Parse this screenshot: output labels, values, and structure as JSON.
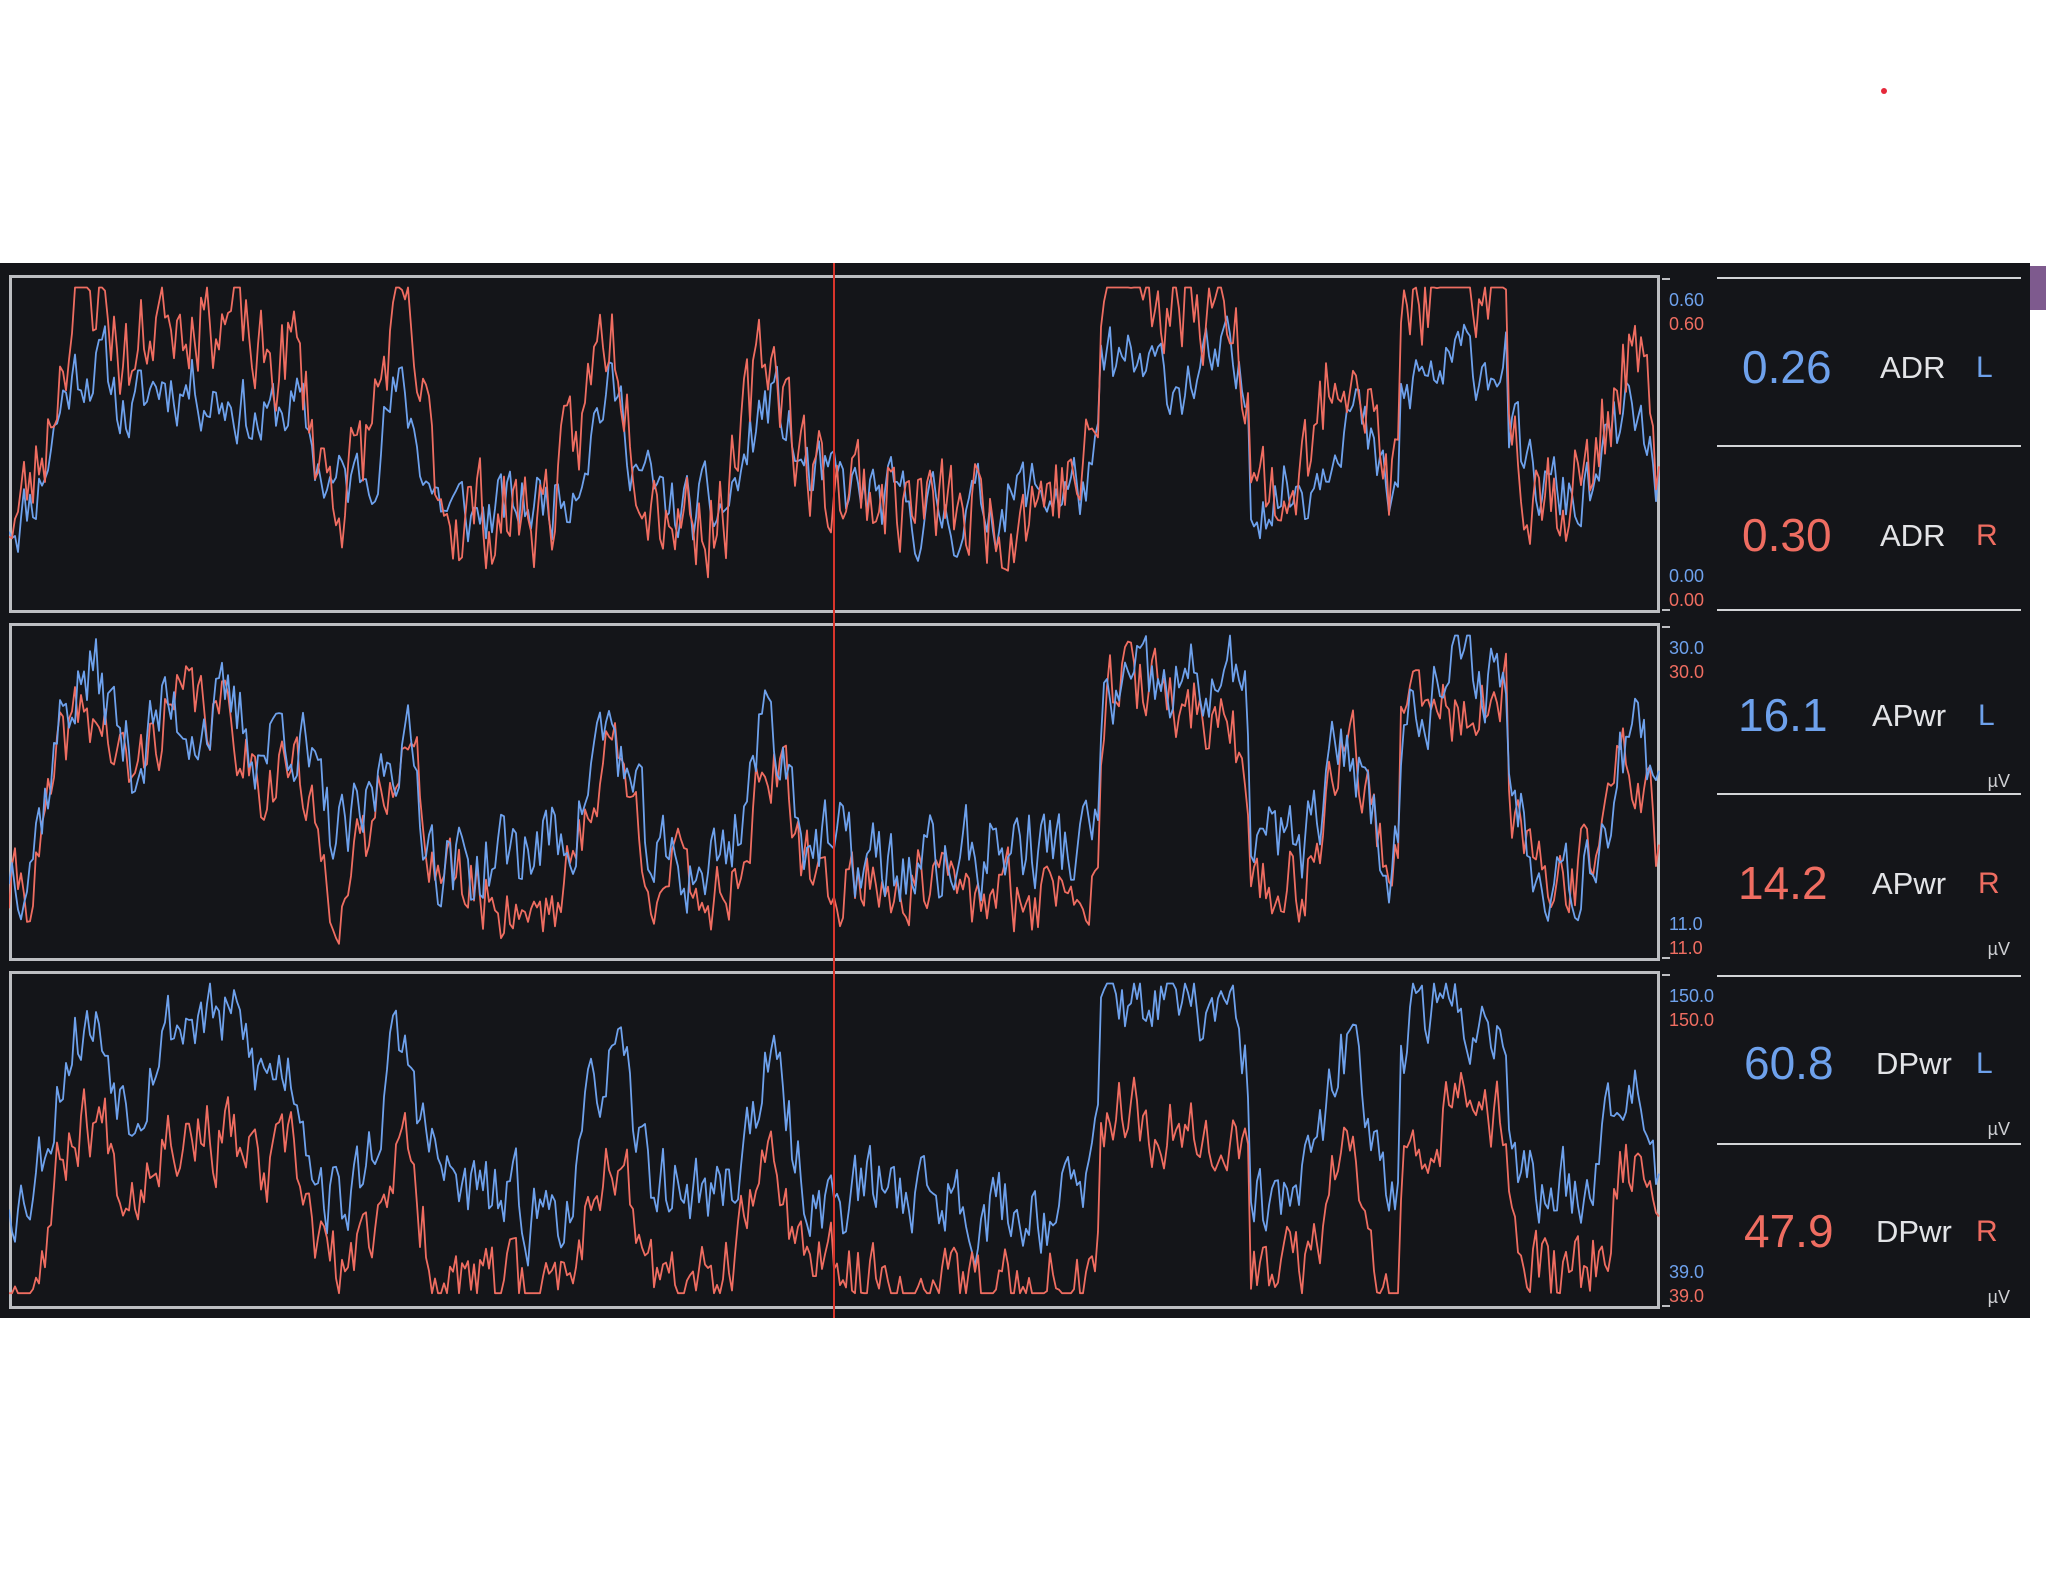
{
  "colors": {
    "background": "#141519",
    "frame": "#bdbec2",
    "left_channel": "#6ea1ec",
    "right_channel": "#ef6d61",
    "cursor": "#d8352b",
    "side_tab": "#7e5a8e"
  },
  "panels": [
    {
      "scale": {
        "left_max": "0.60",
        "right_max": "0.60",
        "left_min": "0.00",
        "right_min": "0.00"
      },
      "metrics": [
        {
          "value": "0.26",
          "name": "ADR",
          "side": "L",
          "unit": ""
        },
        {
          "value": "0.30",
          "name": "ADR",
          "side": "R",
          "unit": ""
        }
      ]
    },
    {
      "scale": {
        "left_max": "30.0",
        "right_max": "30.0",
        "left_min": "11.0",
        "right_min": "11.0"
      },
      "metrics": [
        {
          "value": "16.1",
          "name": "APwr",
          "side": "L",
          "unit": "µV"
        },
        {
          "value": "14.2",
          "name": "APwr",
          "side": "R",
          "unit": "µV"
        }
      ]
    },
    {
      "scale": {
        "left_max": "150.0",
        "right_max": "150.0",
        "left_min": "39.0",
        "right_min": "39.0"
      },
      "metrics": [
        {
          "value": "60.8",
          "name": "DPwr",
          "side": "L",
          "unit": "µV"
        },
        {
          "value": "47.9",
          "name": "DPwr",
          "side": "R",
          "unit": "µV"
        }
      ]
    }
  ]
}
